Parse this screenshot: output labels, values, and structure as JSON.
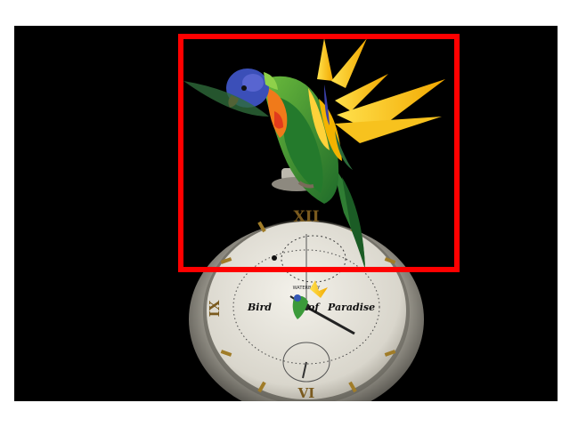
{
  "image": {
    "background": "#000000",
    "selection_color": "#ff0000",
    "subject": "parrot-on-pocket-watch",
    "caption": {
      "word1": "Bird",
      "word2": "of",
      "word3": "Paradise"
    },
    "watch_numerals": {
      "top": "XII",
      "bottom": "VI",
      "left": "IX",
      "maker": "WATERBURY"
    }
  }
}
